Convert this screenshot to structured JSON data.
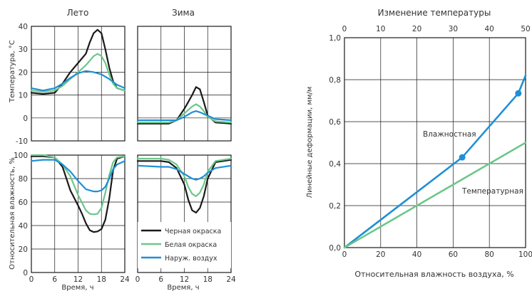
{
  "colors": {
    "black": "#1a1a1a",
    "green": "#6cc78a",
    "blue": "#1f8fd6",
    "grid": "#1a1a1a"
  },
  "left_panel": {
    "title_summer": "Лето",
    "title_winter": "Зима",
    "ylabel_top": "Температура, °С",
    "ylabel_bottom": "Относительная влажность, %",
    "xlabel": "Время, ч",
    "legend": [
      "Черная окраска",
      "Белая окраска",
      "Наруж. воздух"
    ]
  },
  "right_panel": {
    "top_axis_label": "Изменение температуры",
    "xlabel": "Относительная влажность воздуха, %",
    "ylabel": "Линейные деформации, мм/м",
    "label_moist": "Влажностная",
    "label_temp": "Температурная"
  },
  "chart_data": [
    {
      "type": "line",
      "title": "Лето",
      "ylabel": "Температура, °С",
      "xlim": [
        0,
        24
      ],
      "ylim": [
        -10,
        40
      ],
      "xticks": [
        "0",
        "6",
        "12",
        "18",
        "24"
      ],
      "yticks": [
        "-10",
        "0",
        "10",
        "20",
        "30",
        "40"
      ],
      "grid": true,
      "series": [
        {
          "name": "Черная окраска",
          "color": "black",
          "x": [
            0,
            3,
            6,
            8,
            10,
            12,
            14,
            15,
            16,
            17,
            18,
            19,
            20,
            21,
            22,
            24
          ],
          "y": [
            11,
            10.5,
            11,
            15,
            20,
            24,
            28,
            33,
            37,
            38.5,
            37,
            30,
            22,
            16,
            13,
            12
          ]
        },
        {
          "name": "Белая окраска",
          "color": "green",
          "x": [
            0,
            3,
            6,
            8,
            10,
            12,
            14,
            16,
            17,
            18,
            19,
            20,
            21,
            22,
            24
          ],
          "y": [
            12,
            11.5,
            12,
            14,
            17,
            20,
            23,
            27,
            28,
            27,
            24,
            19,
            15,
            13,
            12
          ]
        },
        {
          "name": "Наруж. воздух",
          "color": "blue",
          "x": [
            0,
            3,
            6,
            8,
            10,
            12,
            14,
            16,
            18,
            20,
            22,
            24
          ],
          "y": [
            13,
            12,
            13,
            15,
            17.5,
            19.5,
            20.5,
            20,
            19,
            17,
            14.5,
            13
          ]
        }
      ]
    },
    {
      "type": "line",
      "title": "Зима",
      "xlim": [
        0,
        24
      ],
      "ylim": [
        -10,
        40
      ],
      "xticks": [
        "0",
        "6",
        "12",
        "18",
        "24"
      ],
      "grid": true,
      "series": [
        {
          "name": "Черная окраска",
          "color": "black",
          "x": [
            0,
            4,
            8,
            10,
            12,
            13,
            14,
            15,
            16,
            17,
            18,
            20,
            24
          ],
          "y": [
            -2.5,
            -2.5,
            -2.5,
            -1,
            4,
            7,
            10,
            13.5,
            12.5,
            7,
            1,
            -2,
            -2.5
          ]
        },
        {
          "name": "Белая окраска",
          "color": "green",
          "x": [
            0,
            4,
            8,
            10,
            12,
            14,
            15,
            16,
            17,
            18,
            20,
            24
          ],
          "y": [
            -2,
            -2,
            -2,
            -1,
            2,
            5,
            6,
            5,
            3,
            0.5,
            -1.5,
            -2
          ]
        },
        {
          "name": "Наруж. воздух",
          "color": "blue",
          "x": [
            0,
            6,
            10,
            12,
            14,
            15,
            16,
            18,
            20,
            24
          ],
          "y": [
            -1,
            -1,
            -1,
            0.5,
            2.5,
            3,
            2.5,
            1,
            -0.5,
            -1
          ]
        }
      ]
    },
    {
      "type": "line",
      "ylabel": "Относительная влажность, %",
      "xlabel": "Время, ч",
      "xlim": [
        0,
        24
      ],
      "ylim": [
        0,
        100
      ],
      "xticks": [
        "0",
        "6",
        "12",
        "18",
        "24"
      ],
      "yticks": [
        "0",
        "20",
        "40",
        "60",
        "80",
        "100"
      ],
      "grid": true,
      "series": [
        {
          "name": "Черная окраска",
          "color": "black",
          "x": [
            0,
            3,
            6,
            8,
            10,
            12,
            13,
            14,
            15,
            16,
            17,
            18,
            19,
            20,
            21,
            22,
            24
          ],
          "y": [
            99,
            99,
            98,
            90,
            70,
            57,
            50,
            42,
            36,
            34.5,
            35,
            37,
            45,
            63,
            87,
            97,
            99
          ]
        },
        {
          "name": "Белая окраска",
          "color": "green",
          "x": [
            0,
            3,
            6,
            8,
            10,
            12,
            14,
            15,
            16,
            17,
            18,
            19,
            20,
            21,
            22,
            24
          ],
          "y": [
            100,
            100,
            98,
            92,
            82,
            66,
            53,
            50,
            49.5,
            50,
            55,
            68,
            83,
            94,
            98,
            99
          ]
        },
        {
          "name": "Наруж. воздух",
          "color": "blue",
          "x": [
            0,
            3,
            6,
            8,
            10,
            12,
            14,
            16,
            17,
            18,
            19,
            20,
            21,
            22,
            24
          ],
          "y": [
            95,
            96,
            96,
            92,
            86,
            78,
            71,
            69,
            69,
            70,
            73,
            80,
            88,
            92,
            95
          ]
        }
      ]
    },
    {
      "type": "line",
      "xlabel": "Время, ч",
      "xlim": [
        0,
        24
      ],
      "ylim": [
        0,
        100
      ],
      "xticks": [
        "0",
        "6",
        "12",
        "18",
        "24"
      ],
      "grid": true,
      "legend": "bottom-right",
      "series": [
        {
          "name": "Черная окраска",
          "color": "black",
          "x": [
            0,
            6,
            8,
            10,
            12,
            13,
            14,
            15,
            16,
            17,
            18,
            20,
            24
          ],
          "y": [
            95,
            95,
            94,
            89,
            75,
            62,
            53,
            51,
            55,
            65,
            80,
            94,
            96
          ]
        },
        {
          "name": "Белая окраска",
          "color": "green",
          "x": [
            0,
            6,
            8,
            10,
            12,
            13,
            14,
            15,
            16,
            17,
            18,
            20,
            24
          ],
          "y": [
            97,
            97,
            96,
            92,
            82,
            73,
            67,
            65,
            68,
            75,
            86,
            95,
            97
          ]
        },
        {
          "name": "Наруж. воздух",
          "color": "blue",
          "x": [
            0,
            6,
            8,
            10,
            12,
            14,
            15,
            16,
            17,
            18,
            20,
            24
          ],
          "y": [
            91,
            90,
            90,
            88,
            84,
            80,
            79,
            80,
            82,
            85,
            89,
            91
          ]
        }
      ]
    },
    {
      "type": "line",
      "xlabel": "Относительная влажность воздуха, %",
      "ylabel": "Линейные деформации, мм/м",
      "top_axis_label": "Изменение температуры",
      "xlim": [
        0,
        100
      ],
      "ylim": [
        0,
        1.0
      ],
      "xticks": [
        "0",
        "20",
        "40",
        "60",
        "80",
        "100"
      ],
      "top_xticks": [
        "0",
        "10",
        "20",
        "30",
        "40",
        "50"
      ],
      "yticks": [
        "0,0",
        "0,2",
        "0,4",
        "0,6",
        "0,8",
        "1,0"
      ],
      "grid": true,
      "series": [
        {
          "name": "Влажностная",
          "color": "blue",
          "x": [
            0,
            65,
            96,
            100
          ],
          "y": [
            0,
            0.43,
            0.735,
            0.82
          ],
          "markers_x": [
            65,
            96
          ],
          "markers_y": [
            0.43,
            0.735
          ]
        },
        {
          "name": "Температурная",
          "color": "green",
          "x": [
            0,
            100
          ],
          "y": [
            0,
            0.5
          ]
        }
      ]
    }
  ]
}
